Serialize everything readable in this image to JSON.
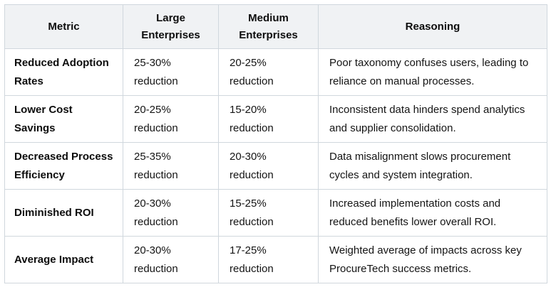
{
  "table": {
    "headers": {
      "metric": "Metric",
      "large": "Large Enterprises",
      "medium": "Medium Enterprises",
      "reasoning": "Reasoning"
    },
    "rows": [
      {
        "metric": "Reduced Adoption Rates",
        "large": "25-30% reduction",
        "medium": "20-25% reduction",
        "reasoning": "Poor taxonomy confuses users, leading to reliance on manual processes."
      },
      {
        "metric": "Lower Cost Savings",
        "large": "20-25% reduction",
        "medium": "15-20% reduction",
        "reasoning": "Inconsistent data hinders spend analytics and supplier consolidation."
      },
      {
        "metric": "Decreased Process Efficiency",
        "large": "25-35% reduction",
        "medium": "20-30% reduction",
        "reasoning": "Data misalignment slows procurement cycles and system integration."
      },
      {
        "metric": "Diminished ROI",
        "large": "20-30% reduction",
        "medium": "15-25% reduction",
        "reasoning": "Increased implementation costs and reduced benefits lower overall ROI."
      },
      {
        "metric": "Average Impact",
        "large": "20-30% reduction",
        "medium": "17-25% reduction",
        "reasoning": "Weighted average of impacts across key ProcureTech success metrics."
      }
    ],
    "colors": {
      "header_bg": "#f0f2f4",
      "border": "#d0d7dd",
      "text": "#141414"
    }
  }
}
